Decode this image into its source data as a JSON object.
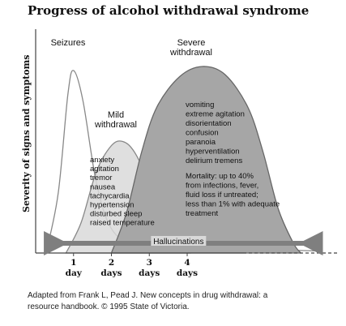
{
  "chart_data": {
    "type": "area",
    "title": "Progress of alcohol withdrawal syndrome",
    "ylabel": "Severity of signs and symptoms",
    "x_ticks": [
      {
        "value": 1,
        "line1": "1",
        "line2": "day"
      },
      {
        "value": 2,
        "line1": "2",
        "line2": "days"
      },
      {
        "value": 3,
        "line1": "3",
        "line2": "days"
      },
      {
        "value": 4,
        "line1": "4",
        "line2": "days"
      }
    ],
    "xlim": [
      0,
      8
    ],
    "ylim": [
      0,
      10
    ],
    "series": [
      {
        "key": "seizures",
        "name": "Seizures",
        "color": "#ffffff",
        "stroke": "#888888",
        "points": [
          [
            0.3,
            0.2
          ],
          [
            0.6,
            3
          ],
          [
            0.85,
            7.8
          ],
          [
            1.0,
            9.0
          ],
          [
            1.25,
            7.5
          ],
          [
            1.6,
            3.5
          ],
          [
            2.0,
            1.2
          ],
          [
            2.6,
            0.5
          ],
          [
            4,
            0.3
          ],
          [
            7.5,
            0.1
          ]
        ]
      },
      {
        "key": "mild",
        "name": "Mild\nwithdrawal",
        "color": "#d9d9d9",
        "stroke": "#888888",
        "points": [
          [
            0.8,
            0
          ],
          [
            1.2,
            1.5
          ],
          [
            1.6,
            4.0
          ],
          [
            2.0,
            5.3
          ],
          [
            2.3,
            5.5
          ],
          [
            2.6,
            5.0
          ],
          [
            3.0,
            3.5
          ],
          [
            3.4,
            1.6
          ],
          [
            3.8,
            0.3
          ],
          [
            4.1,
            0
          ]
        ]
      },
      {
        "key": "severe",
        "name": "Severe\nwithdrawal",
        "color": "#a6a6a6",
        "stroke": "#666666",
        "points": [
          [
            2.0,
            0
          ],
          [
            2.4,
            2.0
          ],
          [
            2.8,
            5.0
          ],
          [
            3.2,
            7.2
          ],
          [
            3.8,
            8.7
          ],
          [
            4.4,
            9.2
          ],
          [
            5.0,
            8.8
          ],
          [
            5.6,
            7.2
          ],
          [
            6.0,
            5.0
          ],
          [
            6.4,
            2.2
          ],
          [
            6.8,
            0.5
          ],
          [
            7.0,
            0
          ]
        ]
      }
    ],
    "annotations": {
      "mild_symptoms": [
        "anxiety",
        "agitation",
        "tremor",
        "nausea",
        "tachycardia",
        "hypertension",
        "disturbed sleep",
        "raised temperature"
      ],
      "severe_symptoms": [
        "vomiting",
        "extreme agitation",
        "disorientation",
        "confusion",
        "paranoia",
        "hyperventilation",
        "delirium tremens"
      ],
      "mortality": [
        "Mortality: up to 40%",
        "from infections, fever,",
        "fluid loss if untreated;",
        "less than 1% with adequate",
        "treatment"
      ],
      "hallucinations": {
        "label": "Hallucinations",
        "x_start": 0.6,
        "x_end": 7.2
      }
    }
  },
  "caption": {
    "line1": "Adapted from Frank L, Pead J. New concepts in drug withdrawal: a",
    "line2": "resource handbook. © 1995 State of Victoria."
  }
}
